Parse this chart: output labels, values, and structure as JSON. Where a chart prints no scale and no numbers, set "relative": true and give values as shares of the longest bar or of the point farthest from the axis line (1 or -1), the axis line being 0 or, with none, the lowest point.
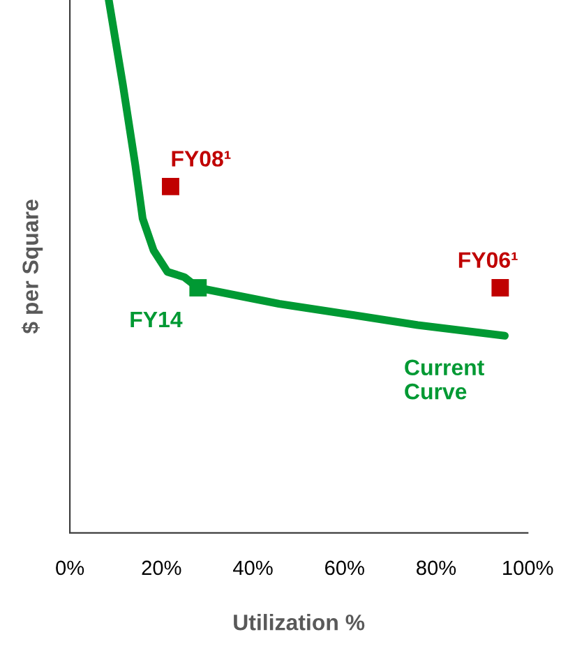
{
  "chart_data": {
    "type": "line",
    "relative": true,
    "xlabel": "Utilization %",
    "ylabel": "$ per Square",
    "xlim": [
      0,
      100
    ],
    "xticks": [
      {
        "value": 0,
        "label": "0%"
      },
      {
        "value": 20,
        "label": "20%"
      },
      {
        "value": 40,
        "label": "40%"
      },
      {
        "value": 60,
        "label": "60%"
      },
      {
        "value": 80,
        "label": "80%"
      },
      {
        "value": 100,
        "label": "100%"
      }
    ],
    "grid": false,
    "legend": false,
    "series": [
      {
        "name": "Current\nCurve",
        "color": "#009933",
        "marker": "none",
        "x": [
          8.5,
          11.6,
          14.3,
          15.9,
          18.3,
          21.3,
          25,
          28,
          45.7,
          61,
          76,
          95
        ],
        "values": [
          1.0,
          0.84,
          0.69,
          0.59,
          0.53,
          0.49,
          0.48,
          0.46,
          0.43,
          0.41,
          0.39,
          0.37
        ]
      },
      {
        "name": "FY14",
        "type": "scatter",
        "color": "#009933",
        "marker": "square",
        "x": [
          28
        ],
        "values": [
          0.46
        ]
      },
      {
        "name": "FY08¹",
        "type": "scatter",
        "color": "#c00000",
        "marker": "square",
        "x": [
          22
        ],
        "values": [
          0.65
        ]
      },
      {
        "name": "FY06¹",
        "type": "scatter",
        "color": "#c00000",
        "marker": "square",
        "x": [
          94
        ],
        "values": [
          0.46
        ]
      }
    ]
  }
}
